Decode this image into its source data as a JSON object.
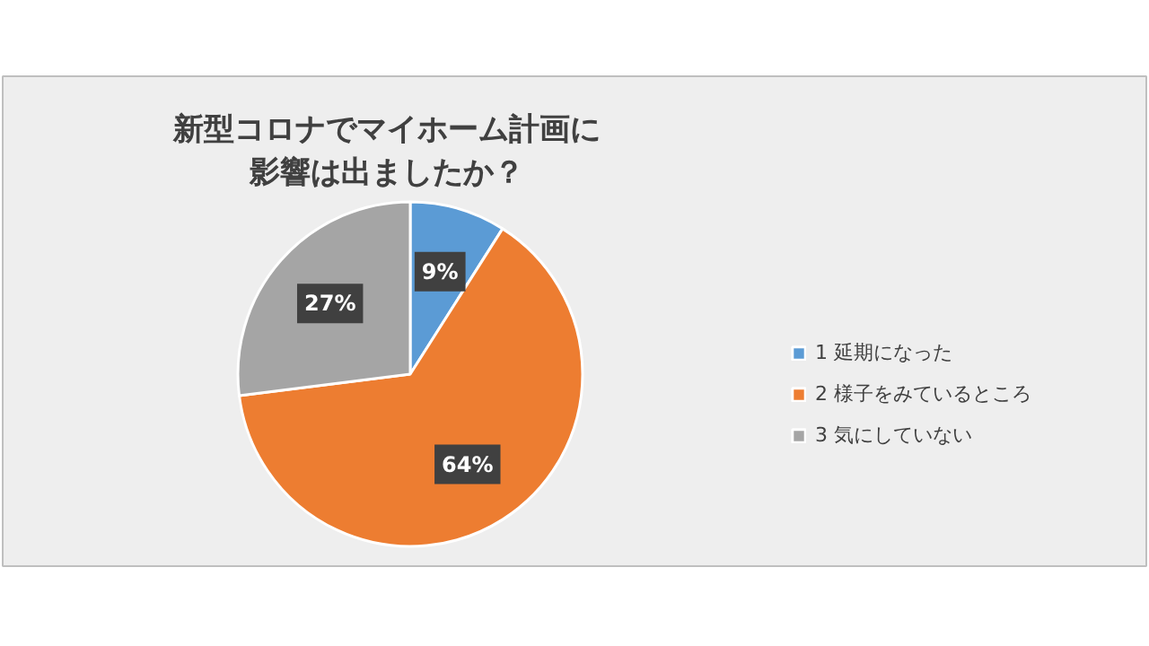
{
  "chart_data": {
    "type": "pie",
    "title": "新型コロナでマイホーム計画に影響は出ましたか？",
    "categories": [
      "1 延期になった",
      "2 様子をみているところ",
      "3 気にしていない"
    ],
    "values": [
      9,
      64,
      27
    ],
    "colors": [
      "#5b9bd5",
      "#ed7d31",
      "#a5a5a5"
    ],
    "value_labels": [
      "9%",
      "64%",
      "27%"
    ],
    "legend": "right"
  }
}
